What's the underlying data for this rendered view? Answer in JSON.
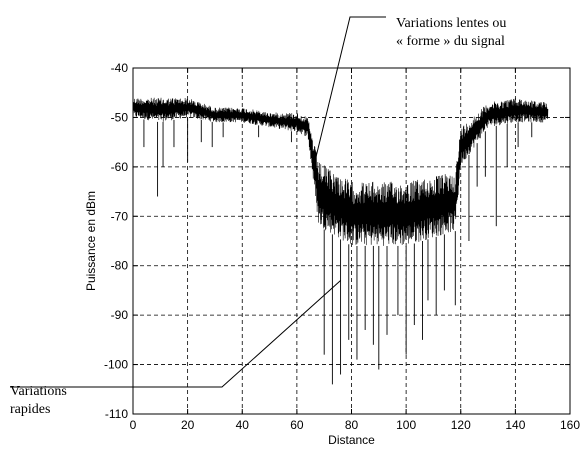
{
  "chart_data": {
    "type": "line",
    "xlabel": "Distance",
    "ylabel": "Puissance en dBm",
    "xlim": [
      0,
      160
    ],
    "ylim": [
      -110,
      -40
    ],
    "xticks": [
      0,
      20,
      40,
      60,
      80,
      100,
      120,
      140,
      160
    ],
    "yticks": [
      -40,
      -50,
      -60,
      -70,
      -80,
      -90,
      -100,
      -110
    ],
    "grid": true,
    "series": [
      {
        "x_range": [
          0,
          152
        ],
        "envelope": [
          {
            "x": 0,
            "lo": -50,
            "hi": -46
          },
          {
            "x": 10,
            "lo": -51,
            "hi": -46
          },
          {
            "x": 20,
            "lo": -50,
            "hi": -46
          },
          {
            "x": 30,
            "lo": -51,
            "hi": -48
          },
          {
            "x": 40,
            "lo": -51,
            "hi": -48
          },
          {
            "x": 50,
            "lo": -52,
            "hi": -49
          },
          {
            "x": 60,
            "lo": -53,
            "hi": -49
          },
          {
            "x": 64,
            "lo": -54,
            "hi": -50
          },
          {
            "x": 68,
            "lo": -72,
            "hi": -59
          },
          {
            "x": 80,
            "lo": -76,
            "hi": -63
          },
          {
            "x": 100,
            "lo": -76,
            "hi": -63
          },
          {
            "x": 118,
            "lo": -73,
            "hi": -61
          },
          {
            "x": 120,
            "lo": -60,
            "hi": -52
          },
          {
            "x": 130,
            "lo": -52,
            "hi": -47
          },
          {
            "x": 140,
            "lo": -51,
            "hi": -46
          },
          {
            "x": 152,
            "lo": -51,
            "hi": -47
          }
        ],
        "dips": [
          {
            "x": 4,
            "y": -56
          },
          {
            "x": 9,
            "y": -66
          },
          {
            "x": 11,
            "y": -60
          },
          {
            "x": 15,
            "y": -56
          },
          {
            "x": 20,
            "y": -59
          },
          {
            "x": 25,
            "y": -55
          },
          {
            "x": 29,
            "y": -56
          },
          {
            "x": 33,
            "y": -54
          },
          {
            "x": 46,
            "y": -54
          },
          {
            "x": 58,
            "y": -55
          },
          {
            "x": 70,
            "y": -98
          },
          {
            "x": 73,
            "y": -104
          },
          {
            "x": 76,
            "y": -102
          },
          {
            "x": 79,
            "y": -95
          },
          {
            "x": 82,
            "y": -99
          },
          {
            "x": 85,
            "y": -93
          },
          {
            "x": 88,
            "y": -96
          },
          {
            "x": 90,
            "y": -101
          },
          {
            "x": 93,
            "y": -94
          },
          {
            "x": 97,
            "y": -90
          },
          {
            "x": 100,
            "y": -98
          },
          {
            "x": 103,
            "y": -92
          },
          {
            "x": 106,
            "y": -95
          },
          {
            "x": 108,
            "y": -87
          },
          {
            "x": 111,
            "y": -90
          },
          {
            "x": 114,
            "y": -85
          },
          {
            "x": 118,
            "y": -88
          },
          {
            "x": 123,
            "y": -75
          },
          {
            "x": 126,
            "y": -64
          },
          {
            "x": 129,
            "y": -62
          },
          {
            "x": 133,
            "y": -72
          },
          {
            "x": 137,
            "y": -60
          },
          {
            "x": 141,
            "y": -56
          },
          {
            "x": 146,
            "y": -54
          }
        ]
      }
    ],
    "annotations": [
      {
        "lines": [
          "Variations lentes ou",
          "« forme » du signal"
        ],
        "points_to": {
          "x": 67,
          "y": -58
        }
      },
      {
        "lines": [
          "Variations",
          "rapides"
        ],
        "points_to": {
          "x": 76,
          "y": -83
        }
      }
    ]
  }
}
